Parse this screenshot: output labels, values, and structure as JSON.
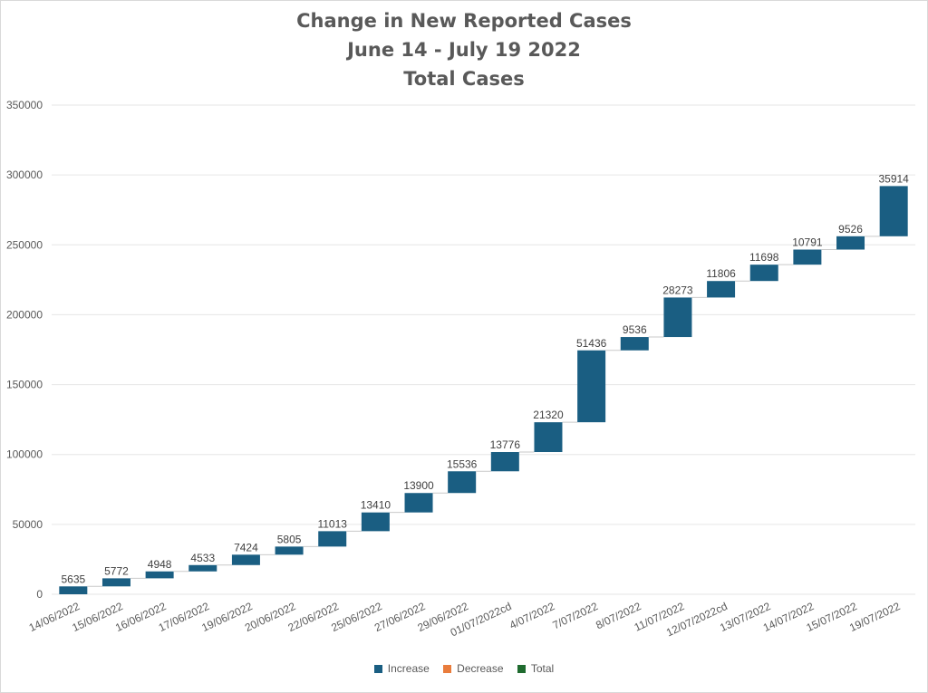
{
  "title": [
    "Change in New Reported Cases",
    "June 14 - July 19 2022",
    "Total Cases"
  ],
  "colors": {
    "increase": "#1a5e82",
    "decrease": "#e97c3c",
    "total": "#1f6b2f",
    "grid": "#e6e6e6",
    "connector": "#c9c9c9"
  },
  "legend": [
    {
      "label": "Increase",
      "color": "#1a5e82"
    },
    {
      "label": "Decrease",
      "color": "#e97c3c"
    },
    {
      "label": "Total",
      "color": "#1f6b2f"
    }
  ],
  "chart_data": {
    "type": "waterfall",
    "categories": [
      "14/06/2022",
      "15/06/2022",
      "16/06/2022",
      "17/06/2022",
      "19/06/2022",
      "20/06/2022",
      "22/06/2022",
      "25/06/2022",
      "27/06/2022",
      "29/06/2022",
      "01/07/2022cd",
      "4/07/2022",
      "7/07/2022",
      "8/07/2022",
      "11/07/2022",
      "12/07/2022cd",
      "13/07/2022",
      "14/07/2022",
      "15/07/2022",
      "19/07/2022"
    ],
    "values": [
      5635,
      5772,
      4948,
      4533,
      7424,
      5805,
      11013,
      13410,
      13900,
      15536,
      13776,
      21320,
      51436,
      9536,
      28273,
      11806,
      11698,
      10791,
      9526,
      35914
    ],
    "ylim": [
      0,
      350000
    ],
    "yticks": [
      0,
      50000,
      100000,
      150000,
      200000,
      250000,
      300000,
      350000
    ],
    "grid": true,
    "legend_position": "bottom"
  }
}
